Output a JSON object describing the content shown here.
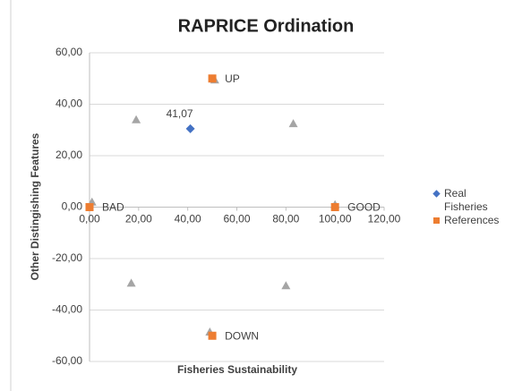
{
  "chart_data": {
    "type": "scatter",
    "title": "RAPRICE Ordination",
    "x_label": "Fisheries Sustainability",
    "y_label": "Other Distingishing Features",
    "xlim": [
      0,
      120
    ],
    "xticks": [
      {
        "value": 0,
        "label": "0,00"
      },
      {
        "value": 20,
        "label": "20,00"
      },
      {
        "value": 40,
        "label": "40,00"
      },
      {
        "value": 60,
        "label": "60,00"
      },
      {
        "value": 80,
        "label": "80,00"
      },
      {
        "value": 100,
        "label": "100,00"
      },
      {
        "value": 120,
        "label": "120,00"
      }
    ],
    "ylim": [
      -60,
      60
    ],
    "yticks": [
      {
        "value": -60,
        "label": "-60,00"
      },
      {
        "value": -40,
        "label": "-40,00"
      },
      {
        "value": -20,
        "label": "-20,00"
      },
      {
        "value": 0,
        "label": "0,00"
      },
      {
        "value": 20,
        "label": "20,00"
      },
      {
        "value": 40,
        "label": "40,00"
      },
      {
        "value": 60,
        "label": "60,00"
      }
    ],
    "grid": true,
    "legend": "right",
    "series": [
      {
        "marker": "triangle",
        "color": "#a5a5a5",
        "x": [
          1,
          19,
          51,
          83,
          100,
          17,
          80,
          49
        ],
        "values": [
          2,
          34,
          49.5,
          32.5,
          1,
          -29.5,
          -30.5,
          -48.5
        ]
      },
      {
        "name": "Real Fisheries",
        "marker": "diamond",
        "color": "#4472c4",
        "x": [
          41.07
        ],
        "values": [
          30.5
        ],
        "x_labels": [
          "41,07"
        ]
      },
      {
        "name": "References",
        "marker": "square",
        "color": "#ed7d31",
        "x": [
          0,
          100,
          50,
          50
        ],
        "values": [
          0,
          0,
          50,
          -50
        ],
        "point_labels": [
          "BAD",
          "GOOD",
          "UP",
          "DOWN"
        ]
      }
    ]
  }
}
